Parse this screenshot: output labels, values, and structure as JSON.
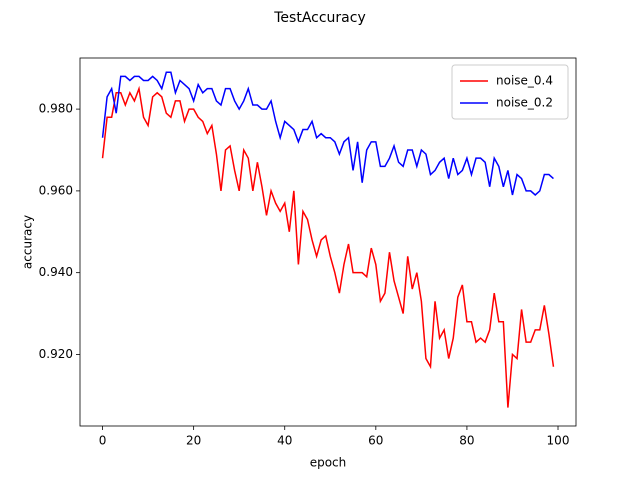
{
  "chart_data": {
    "type": "line",
    "title": "TestAccuracy",
    "xlabel": "epoch",
    "ylabel": "accuracy",
    "x": [
      0,
      1,
      2,
      3,
      4,
      5,
      6,
      7,
      8,
      9,
      10,
      11,
      12,
      13,
      14,
      15,
      16,
      17,
      18,
      19,
      20,
      21,
      22,
      23,
      24,
      25,
      26,
      27,
      28,
      29,
      30,
      31,
      32,
      33,
      34,
      35,
      36,
      37,
      38,
      39,
      40,
      41,
      42,
      43,
      44,
      45,
      46,
      47,
      48,
      49,
      50,
      51,
      52,
      53,
      54,
      55,
      56,
      57,
      58,
      59,
      60,
      61,
      62,
      63,
      64,
      65,
      66,
      67,
      68,
      69,
      70,
      71,
      72,
      73,
      74,
      75,
      76,
      77,
      78,
      79,
      80,
      81,
      82,
      83,
      84,
      85,
      86,
      87,
      88,
      89,
      90,
      91,
      92,
      93,
      94,
      95,
      96,
      97,
      98,
      99
    ],
    "series": [
      {
        "name": "noise_0.4",
        "color": "#ff0000",
        "values": [
          0.968,
          0.978,
          0.978,
          0.984,
          0.984,
          0.981,
          0.984,
          0.982,
          0.985,
          0.978,
          0.976,
          0.983,
          0.984,
          0.983,
          0.979,
          0.978,
          0.982,
          0.982,
          0.977,
          0.98,
          0.98,
          0.978,
          0.977,
          0.974,
          0.976,
          0.969,
          0.96,
          0.97,
          0.971,
          0.965,
          0.96,
          0.97,
          0.968,
          0.96,
          0.967,
          0.961,
          0.954,
          0.96,
          0.957,
          0.955,
          0.957,
          0.95,
          0.96,
          0.942,
          0.955,
          0.953,
          0.948,
          0.944,
          0.948,
          0.949,
          0.944,
          0.94,
          0.935,
          0.942,
          0.947,
          0.94,
          0.94,
          0.94,
          0.939,
          0.946,
          0.942,
          0.933,
          0.935,
          0.945,
          0.938,
          0.934,
          0.93,
          0.944,
          0.936,
          0.94,
          0.933,
          0.919,
          0.917,
          0.933,
          0.924,
          0.926,
          0.919,
          0.924,
          0.934,
          0.937,
          0.928,
          0.928,
          0.923,
          0.924,
          0.923,
          0.926,
          0.935,
          0.928,
          0.928,
          0.907,
          0.92,
          0.919,
          0.931,
          0.923,
          0.923,
          0.926,
          0.926,
          0.932,
          0.925,
          0.917
        ]
      },
      {
        "name": "noise_0.2",
        "color": "#0000ff",
        "values": [
          0.973,
          0.983,
          0.985,
          0.979,
          0.988,
          0.988,
          0.987,
          0.988,
          0.988,
          0.987,
          0.987,
          0.988,
          0.987,
          0.985,
          0.989,
          0.989,
          0.984,
          0.987,
          0.986,
          0.985,
          0.982,
          0.986,
          0.984,
          0.985,
          0.985,
          0.982,
          0.981,
          0.985,
          0.985,
          0.982,
          0.98,
          0.982,
          0.985,
          0.981,
          0.981,
          0.98,
          0.98,
          0.982,
          0.977,
          0.973,
          0.977,
          0.976,
          0.975,
          0.972,
          0.975,
          0.975,
          0.977,
          0.973,
          0.974,
          0.973,
          0.973,
          0.972,
          0.969,
          0.972,
          0.973,
          0.965,
          0.972,
          0.962,
          0.97,
          0.972,
          0.972,
          0.966,
          0.966,
          0.968,
          0.971,
          0.967,
          0.966,
          0.97,
          0.97,
          0.966,
          0.97,
          0.969,
          0.964,
          0.965,
          0.967,
          0.968,
          0.963,
          0.968,
          0.964,
          0.965,
          0.968,
          0.964,
          0.968,
          0.968,
          0.967,
          0.961,
          0.968,
          0.966,
          0.961,
          0.965,
          0.959,
          0.964,
          0.963,
          0.96,
          0.96,
          0.959,
          0.96,
          0.964,
          0.964,
          0.963
        ]
      }
    ],
    "xlim": [
      -4.95,
      103.95
    ],
    "xticks": [
      0,
      20,
      40,
      60,
      80,
      100
    ],
    "ylim": [
      0.9025,
      0.9925
    ],
    "yticks": [
      {
        "value": 0.92,
        "label": "0.920"
      },
      {
        "value": 0.94,
        "label": "0.940"
      },
      {
        "value": 0.96,
        "label": "0.960"
      },
      {
        "value": 0.98,
        "label": "0.980"
      }
    ],
    "legend": "upper right"
  }
}
